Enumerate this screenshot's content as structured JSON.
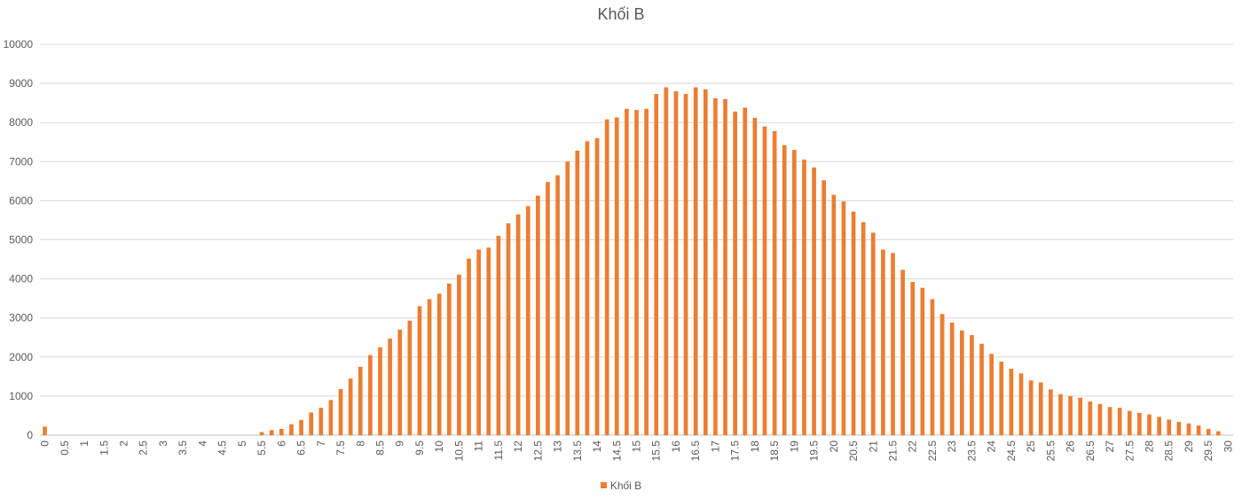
{
  "chart_data": {
    "type": "bar",
    "title": "Khối B",
    "xlabel": "",
    "ylabel": "",
    "ylim": [
      0,
      10000
    ],
    "yticks": [
      0,
      1000,
      2000,
      3000,
      4000,
      5000,
      6000,
      7000,
      8000,
      9000,
      10000
    ],
    "grid": true,
    "legend_position": "bottom",
    "categories": [
      "0",
      "0.25",
      "0.5",
      "0.75",
      "1",
      "1.25",
      "1.5",
      "1.75",
      "2",
      "2.25",
      "2.5",
      "2.75",
      "3",
      "3.25",
      "3.5",
      "3.75",
      "4",
      "4.25",
      "4.5",
      "4.75",
      "5",
      "5.25",
      "5.5",
      "5.75",
      "6",
      "6.25",
      "6.5",
      "6.75",
      "7",
      "7.25",
      "7.5",
      "7.75",
      "8",
      "8.25",
      "8.5",
      "8.75",
      "9",
      "9.25",
      "9.5",
      "9.75",
      "10",
      "10.25",
      "10.5",
      "10.75",
      "11",
      "11.25",
      "11.5",
      "11.75",
      "12",
      "12.25",
      "12.5",
      "12.75",
      "13",
      "13.25",
      "13.5",
      "13.75",
      "14",
      "14.25",
      "14.5",
      "14.75",
      "15",
      "15.25",
      "15.5",
      "15.75",
      "16",
      "16.25",
      "16.5",
      "16.75",
      "17",
      "17.25",
      "17.5",
      "17.75",
      "18",
      "18.25",
      "18.5",
      "18.75",
      "19",
      "19.25",
      "19.5",
      "19.75",
      "20",
      "20.25",
      "20.5",
      "20.75",
      "21",
      "21.25",
      "21.5",
      "21.75",
      "22",
      "22.25",
      "22.5",
      "22.75",
      "23",
      "23.25",
      "23.5",
      "23.75",
      "24",
      "24.25",
      "24.5",
      "24.75",
      "25",
      "25.25",
      "25.5",
      "25.75",
      "26",
      "26.25",
      "26.5",
      "26.75",
      "27",
      "27.25",
      "27.5",
      "27.75",
      "28",
      "28.25",
      "28.5",
      "28.75",
      "29",
      "29.25",
      "29.5",
      "29.75",
      "30"
    ],
    "x_tick_labels": [
      "0",
      "0.5",
      "1",
      "1.5",
      "2",
      "2.5",
      "3",
      "3.5",
      "4",
      "4.5",
      "5",
      "5.5",
      "6",
      "6.5",
      "7",
      "7.5",
      "8",
      "8.5",
      "9",
      "9.5",
      "10",
      "10.5",
      "11",
      "11.5",
      "12",
      "12.5",
      "13",
      "13.5",
      "14",
      "14.5",
      "15",
      "15.5",
      "16",
      "16.5",
      "17",
      "17.5",
      "18",
      "18.5",
      "19",
      "19.5",
      "20",
      "20.5",
      "21",
      "21.5",
      "22",
      "22.5",
      "23",
      "23.5",
      "24",
      "24.5",
      "25",
      "25.5",
      "26",
      "26.5",
      "27",
      "27.5",
      "28",
      "28.5",
      "29",
      "29.5",
      "30"
    ],
    "series": [
      {
        "name": "Khối B",
        "color": "#ED7D31",
        "values": [
          220,
          0,
          0,
          0,
          0,
          0,
          0,
          0,
          0,
          0,
          0,
          0,
          0,
          0,
          0,
          0,
          0,
          0,
          0,
          0,
          0,
          0,
          80,
          130,
          160,
          280,
          390,
          580,
          700,
          900,
          1180,
          1450,
          1750,
          2050,
          2250,
          2470,
          2700,
          2930,
          3300,
          3480,
          3620,
          3880,
          4110,
          4520,
          4750,
          4800,
          5100,
          5420,
          5650,
          5860,
          6130,
          6480,
          6650,
          7000,
          7280,
          7520,
          7600,
          8080,
          8130,
          8350,
          8320,
          8350,
          8730,
          8900,
          8800,
          8730,
          8900,
          8850,
          8620,
          8600,
          8280,
          8380,
          8120,
          7900,
          7780,
          7420,
          7300,
          7050,
          6850,
          6520,
          6150,
          5980,
          5720,
          5450,
          5180,
          4750,
          4660,
          4230,
          3920,
          3770,
          3480,
          3100,
          2880,
          2680,
          2560,
          2340,
          2080,
          1880,
          1700,
          1580,
          1400,
          1350,
          1170,
          1050,
          1000,
          960,
          860,
          800,
          720,
          700,
          620,
          570,
          530,
          470,
          400,
          340,
          300,
          250,
          160,
          100,
          0
        ]
      }
    ]
  }
}
